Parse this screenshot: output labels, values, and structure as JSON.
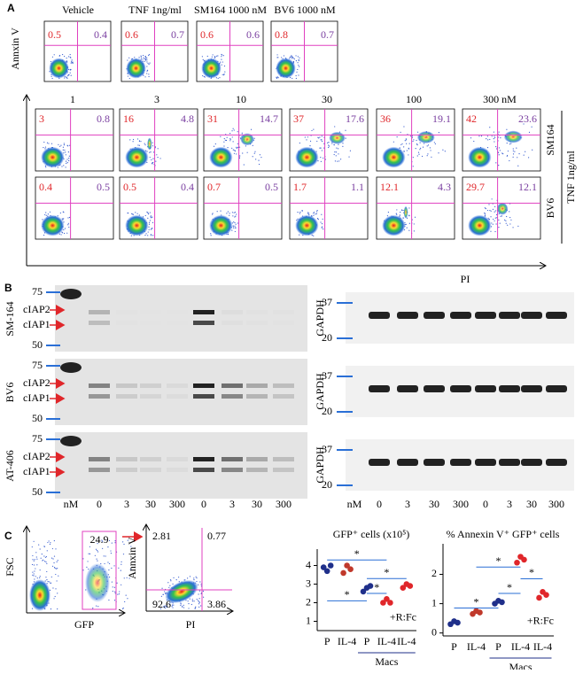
{
  "panel_a": {
    "label": "A",
    "y_axis_label": "Annxin V",
    "x_axis_label": "PI",
    "side_label": "TNF 1ng/ml",
    "controls": [
      {
        "title": "Vehicle",
        "q": [
          0.5,
          0.4
        ]
      },
      {
        "title": "TNF 1ng/ml",
        "q": [
          0.6,
          0.7
        ]
      },
      {
        "title": "SM164 1000 nM",
        "q": [
          0.6,
          0.6
        ]
      },
      {
        "title": "BV6 1000 nM",
        "q": [
          0.8,
          0.7
        ]
      }
    ],
    "doses": [
      "1",
      "3",
      "10",
      "30",
      "100",
      "300 nM"
    ],
    "rows": [
      {
        "name": "SM164",
        "q": [
          [
            3,
            0.8
          ],
          [
            16,
            4.8
          ],
          [
            31,
            14.7
          ],
          [
            37,
            17.6
          ],
          [
            36,
            19.1
          ],
          [
            42,
            23.6
          ]
        ]
      },
      {
        "name": "BV6",
        "q": [
          [
            0.4,
            0.5
          ],
          [
            0.5,
            0.4
          ],
          [
            0.7,
            0.5
          ],
          [
            1.7,
            1.1
          ],
          [
            12.1,
            4.3
          ],
          [
            29.7,
            12.1
          ]
        ]
      }
    ]
  },
  "panel_b": {
    "label": "B",
    "band_labels": [
      "cIAP2",
      "cIAP1"
    ],
    "loading": "GAPDH",
    "unit": "nM",
    "lanes": [
      "0",
      "3",
      "30",
      "300",
      "0",
      "3",
      "30",
      "300"
    ],
    "blots": [
      {
        "name": "SM-164",
        "markers": [
          75,
          50
        ],
        "gapdh_markers": [
          37,
          20
        ]
      },
      {
        "name": "BV6",
        "markers": [
          75,
          50
        ],
        "gapdh_markers": [
          37,
          20
        ]
      },
      {
        "name": "AT-406",
        "markers": [
          75,
          50
        ],
        "gapdh_markers": [
          37,
          20
        ]
      }
    ]
  },
  "panel_c": {
    "label": "C",
    "gfp_plot": {
      "y_label": "FSC",
      "x_label": "GFP",
      "gate": 24.9
    },
    "annexin_plot": {
      "y_label": "Annxin V",
      "x_label": "PI",
      "quadrants": [
        2.81,
        0.77,
        92.6,
        3.86
      ]
    },
    "charts": [
      {
        "title": "GFP⁺ cells (x10⁵)",
        "categories": [
          "P",
          "IL-4",
          "P",
          "IL-4",
          "IL-4"
        ],
        "group_label": "Macs",
        "treatment": "+R:Fc",
        "colors": [
          "#1f2f8a",
          "#c0392b",
          "#1f2f8a",
          "#e0262a",
          "#e0262a"
        ],
        "values": [
          [
            3.9,
            3.7,
            4.0
          ],
          [
            3.6,
            4.0,
            3.8
          ],
          [
            2.6,
            2.8,
            2.9
          ],
          [
            2.0,
            2.2,
            2.0
          ],
          [
            2.8,
            3.0,
            2.9
          ]
        ],
        "ylim": [
          0.5,
          4.5
        ],
        "yticks": [
          1,
          2,
          3,
          4
        ],
        "significance": "*"
      },
      {
        "title": "% Annexin V⁺ GFP⁺ cells",
        "categories": [
          "P",
          "IL-4",
          "P",
          "IL-4",
          "IL-4"
        ],
        "group_label": "Macs",
        "treatment": "+R:Fc",
        "colors": [
          "#1f2f8a",
          "#c0392b",
          "#1f2f8a",
          "#e0262a",
          "#e0262a"
        ],
        "values": [
          [
            0.3,
            0.4,
            0.35
          ],
          [
            0.65,
            0.75,
            0.7
          ],
          [
            1.0,
            1.1,
            1.05
          ],
          [
            2.4,
            2.6,
            2.5
          ],
          [
            1.2,
            1.4,
            1.3
          ]
        ],
        "ylim": [
          -0.1,
          2.8
        ],
        "yticks": [
          0,
          1,
          2
        ],
        "significance": "*"
      }
    ]
  }
}
